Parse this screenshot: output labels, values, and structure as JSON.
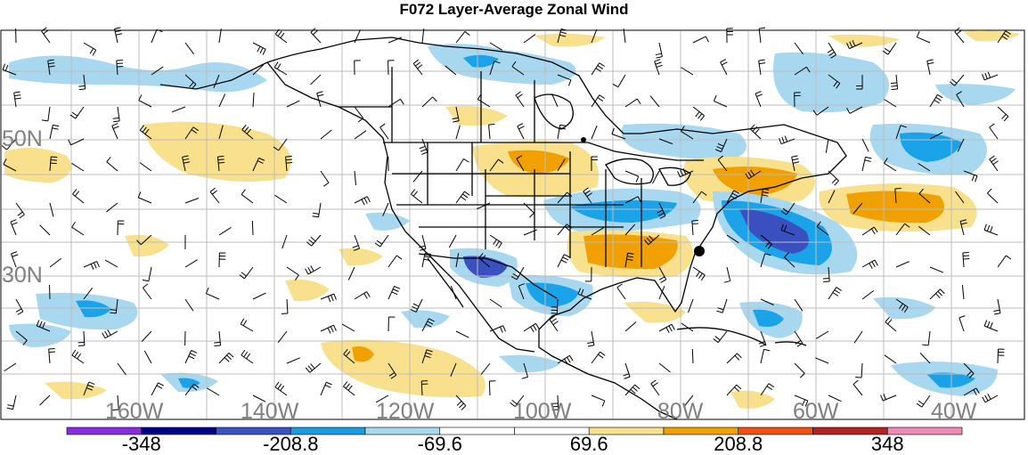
{
  "title": "F072 Layer-Average Zonal Wind",
  "lat_labels": [
    "50N",
    "30N"
  ],
  "lon_labels": [
    "160W",
    "140W",
    "120W",
    "100W",
    "80W",
    "60W",
    "40W"
  ],
  "colorbar": {
    "colors": [
      "#8a2be2",
      "#00008b",
      "#3a52c8",
      "#1a9de0",
      "#a8d8f0",
      "#ffffff",
      "#ffffff",
      "#f8e08c",
      "#f0a000",
      "#f05010",
      "#b22222",
      "#f088b8"
    ],
    "labels": [
      "-348",
      "-208.8",
      "-69.6",
      "69.6",
      "208.8",
      "348"
    ]
  },
  "colors": {
    "light_blue": "#a8d8f0",
    "mid_blue": "#1aa3e8",
    "dark_blue": "#3a4fc0",
    "light_yellow": "#f8e08c",
    "orange": "#f0a000",
    "grid": "#bdbdbd",
    "coast": "#000000"
  }
}
